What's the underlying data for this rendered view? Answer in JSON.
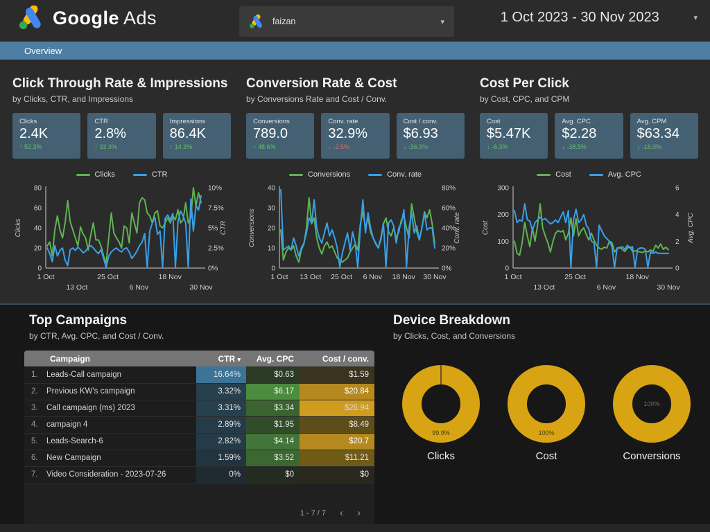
{
  "header": {
    "logo_google": "Google",
    "logo_ads": "Ads",
    "account_name": "faizan",
    "date_range": "1 Oct 2023 - 30 Nov 2023",
    "caret": "▾"
  },
  "tabbar": {
    "overview_label": "Overview"
  },
  "colors": {
    "green_delta": "#62bd6e",
    "red_delta": "#de6a64",
    "donut_gold": "#d9a413"
  },
  "sections": [
    {
      "title": "Click Through Rate & Impressions",
      "subtitle": "by Clicks, CTR, and Impressions",
      "cards": [
        {
          "label": "Clicks",
          "value": "2.4K",
          "arrow": "↑",
          "delta": "52.3%",
          "delta_color": "#62bd6e"
        },
        {
          "label": "CTR",
          "value": "2.8%",
          "arrow": "↑",
          "delta": "33.3%",
          "delta_color": "#62bd6e"
        },
        {
          "label": "Impressions",
          "value": "86.4K",
          "arrow": "↑",
          "delta": "14.3%",
          "delta_color": "#62bd6e"
        }
      ]
    },
    {
      "title": "Conversion Rate & Cost",
      "subtitle": "by Conversions Rate and Cost / Conv.",
      "cards": [
        {
          "label": "Conversions",
          "value": "789.0",
          "arrow": "↑",
          "delta": "48.6%",
          "delta_color": "#62bd6e"
        },
        {
          "label": "Conv. rate",
          "value": "32.9%",
          "arrow": "↓",
          "delta": "-2.5%",
          "delta_color": "#de6a64"
        },
        {
          "label": "Cost / conv.",
          "value": "$6.93",
          "arrow": "↓",
          "delta": "-36.9%",
          "delta_color": "#62bd6e"
        }
      ]
    },
    {
      "title": "Cost Per Click",
      "subtitle": "by Cost, CPC, and CPM",
      "cards": [
        {
          "label": "Cost",
          "value": "$5.47K",
          "arrow": "↓",
          "delta": "-6.3%",
          "delta_color": "#62bd6e"
        },
        {
          "label": "Avg. CPC",
          "value": "$2.28",
          "arrow": "↓",
          "delta": "-38.5%",
          "delta_color": "#62bd6e"
        },
        {
          "label": "Avg. CPM",
          "value": "$63.34",
          "arrow": "↓",
          "delta": "-18.0%",
          "delta_color": "#62bd6e"
        }
      ]
    }
  ],
  "chart_data": [
    {
      "type": "line",
      "x_range": [
        "1 Oct 2023",
        "30 Nov 2023"
      ],
      "x_ticks": [
        "1 Oct",
        "13 Oct",
        "25 Oct",
        "6 Nov",
        "18 Nov",
        "30 Nov"
      ],
      "x_stagger": true,
      "left_axis": {
        "label": "Clicks",
        "min": 0,
        "max": 80,
        "ticks": [
          0,
          20,
          40,
          60,
          80
        ],
        "tick_labels": [
          "0",
          "20",
          "40",
          "60",
          "80"
        ]
      },
      "right_axis": {
        "label": "CTR",
        "min": 0,
        "max": 10,
        "ticks": [
          0,
          2.5,
          5,
          7.5,
          10
        ],
        "tick_labels": [
          "0%",
          "2.5%",
          "5%",
          "7.5%",
          "10%"
        ]
      },
      "series": [
        {
          "name": "Clicks",
          "axis": "left",
          "color": "#61b253",
          "values": [
            22,
            26,
            12,
            38,
            52,
            38,
            30,
            45,
            67,
            46,
            38,
            30,
            22,
            41,
            34,
            30,
            18,
            33,
            45,
            28,
            28,
            22,
            12,
            5,
            30,
            55,
            35,
            30,
            26,
            20,
            42,
            40,
            25,
            55,
            45,
            35,
            65,
            70,
            68,
            55,
            52,
            45,
            55,
            57,
            42,
            40,
            45,
            50,
            45,
            52,
            48,
            58,
            45,
            48,
            65,
            45,
            50,
            80,
            62,
            75,
            65
          ]
        },
        {
          "name": "CTR",
          "axis": "right",
          "color": "#3aa0e8",
          "values": [
            2.5,
            1.8,
            0.8,
            2.8,
            1.5,
            2.2,
            2.5,
            1.0,
            0.3,
            2.3,
            2.5,
            2.2,
            2.6,
            2.3,
            1.9,
            2.1,
            2.6,
            2.8,
            2.5,
            2.1,
            1.8,
            2.3,
            1.2,
            0.1,
            1.5,
            2.0,
            2.3,
            2.5,
            2.2,
            2.0,
            2.4,
            2.5,
            2.0,
            1.2,
            1.6,
            2.1,
            2.8,
            3.2,
            4.3,
            0.1,
            4.6,
            5.6,
            6.3,
            4.2,
            4.6,
            0.1,
            6.2,
            6.6,
            6.0,
            6.8,
            0.1,
            5.8,
            7.1,
            6.5,
            5.6,
            0.1,
            8.6,
            4.6,
            7.8,
            7.2,
            9.0
          ]
        }
      ]
    },
    {
      "type": "line",
      "x_range": [
        "1 Oct 2023",
        "30 Nov 2023"
      ],
      "x_ticks": [
        "1 Oct",
        "13 Oct",
        "25 Oct",
        "6 Nov",
        "18 Nov",
        "30 Nov"
      ],
      "x_stagger": false,
      "left_axis": {
        "label": "Conversions",
        "min": 0,
        "max": 40,
        "ticks": [
          0,
          10,
          20,
          30,
          40
        ],
        "tick_labels": [
          "0",
          "10",
          "20",
          "30",
          "40"
        ]
      },
      "right_axis": {
        "label": "Conv. rate",
        "min": 0,
        "max": 80,
        "ticks": [
          0,
          20,
          40,
          60,
          80
        ],
        "tick_labels": [
          "0%",
          "20%",
          "40%",
          "60%",
          "80%"
        ]
      },
      "series": [
        {
          "name": "Conversions",
          "axis": "left",
          "color": "#61b253",
          "values": [
            19,
            4,
            8,
            10,
            9,
            11,
            6,
            3,
            9,
            12,
            20,
            35,
            22,
            25,
            15,
            10,
            7,
            11,
            13,
            10,
            11,
            8,
            5,
            4,
            3,
            4,
            5,
            8,
            10,
            12,
            9,
            22,
            28,
            20,
            25,
            18,
            15,
            12,
            10,
            14,
            22,
            25,
            18,
            16,
            20,
            15,
            18,
            24,
            26,
            20,
            15,
            32,
            25,
            18,
            14,
            20,
            28,
            25,
            29,
            22,
            12
          ]
        },
        {
          "name": "Conv. rate",
          "axis": "right",
          "color": "#3aa0e8",
          "values": [
            78,
            18,
            20,
            22,
            18,
            30,
            22,
            12,
            20,
            25,
            35,
            50,
            45,
            68,
            40,
            30,
            25,
            35,
            45,
            32,
            38,
            30,
            20,
            1,
            15,
            25,
            35,
            18,
            36,
            25,
            1,
            40,
            68,
            35,
            55,
            40,
            30,
            25,
            20,
            30,
            45,
            1,
            45,
            48,
            42,
            25,
            40,
            45,
            58,
            1,
            40,
            55,
            35,
            42,
            28,
            40,
            55,
            38,
            40,
            40,
            20
          ]
        }
      ]
    },
    {
      "type": "line",
      "x_range": [
        "1 Oct 2023",
        "30 Nov 2023"
      ],
      "x_ticks": [
        "1 Oct",
        "13 Oct",
        "25 Oct",
        "6 Nov",
        "18 Nov",
        "30 Nov"
      ],
      "x_stagger": true,
      "left_axis": {
        "label": "Cost",
        "min": 0,
        "max": 300,
        "ticks": [
          0,
          100,
          200,
          300
        ],
        "tick_labels": [
          "0",
          "100",
          "200",
          "300"
        ]
      },
      "right_axis": {
        "label": "Avg. CPC",
        "min": 0,
        "max": 6,
        "ticks": [
          0,
          2,
          4,
          6
        ],
        "tick_labels": [
          "0",
          "2",
          "4",
          "6"
        ]
      },
      "series": [
        {
          "name": "Cost",
          "axis": "left",
          "color": "#61b253",
          "values": [
            100,
            55,
            48,
            95,
            170,
            120,
            80,
            150,
            100,
            160,
            240,
            150,
            120,
            95,
            60,
            100,
            130,
            140,
            135,
            140,
            105,
            130,
            188,
            120,
            185,
            120,
            140,
            150,
            125,
            105,
            130,
            105,
            85,
            75,
            70,
            78,
            75,
            100,
            95,
            60,
            72,
            78,
            70,
            62,
            75,
            80,
            62,
            65,
            62,
            60,
            58,
            65,
            60,
            68,
            62,
            85,
            75,
            90,
            70,
            78,
            68
          ]
        },
        {
          "name": "Avg. CPC",
          "axis": "right",
          "color": "#3aa0e8",
          "values": [
            4.3,
            3.4,
            3.6,
            3.5,
            4.8,
            3.6,
            3.5,
            2.8,
            3.4,
            3.6,
            3.8,
            3.6,
            3.7,
            3.5,
            3.3,
            3.4,
            3.6,
            3.4,
            3.8,
            4.2,
            3.4,
            4.3,
            0.05,
            3.6,
            4.4,
            3.4,
            3.6,
            4.0,
            3.2,
            2.9,
            2.0,
            1.9,
            0.05,
            3.2,
            2.8,
            2.4,
            2.2,
            2.0,
            1.6,
            0.05,
            1.5,
            1.5,
            1.6,
            1.4,
            1.7,
            1.5,
            1.6,
            0.05,
            1.4,
            1.5,
            1.5,
            1.4,
            0.05,
            1.2,
            1.1,
            1.2,
            1.1,
            1.1,
            1.1,
            1.1,
            1.1
          ]
        }
      ]
    },
    {
      "type": "pie",
      "label": "Clicks",
      "slices": [
        99.9,
        0.1
      ],
      "percent_label": "99.9%",
      "percent_pos": "bottom",
      "color": "#d9a413"
    },
    {
      "type": "pie",
      "label": "Cost",
      "slices": [
        100
      ],
      "percent_label": "100%",
      "percent_pos": "bottom",
      "color": "#d9a413"
    },
    {
      "type": "pie",
      "label": "Conversions",
      "slices": [
        100
      ],
      "percent_label": "100%",
      "percent_pos": "center",
      "color": "#d9a413"
    }
  ],
  "top_campaigns": {
    "title": "Top Campaigns",
    "subtitle": "by CTR, Avg. CPC, and Cost / Conv.",
    "sort_icon": "▾",
    "headers": [
      "Campaign",
      "CTR",
      "Avg. CPC",
      "Cost / conv."
    ],
    "rows": [
      {
        "num": "1.",
        "name": "Leads-Call campaign",
        "ctr": "16.64%",
        "ctr_bg": "#3d7396",
        "cpc": "$0.63",
        "cpc_bg": "#2b3a25",
        "cost": "$1.59",
        "cost_bg": "#393320",
        "cost_fg": "#e8e8e8"
      },
      {
        "num": "2.",
        "name": "Previous KW's campaign",
        "ctr": "3.32%",
        "ctr_bg": "#27404d",
        "cpc": "$6.17",
        "cpc_bg": "#4c8c3f",
        "cost": "$20.84",
        "cost_bg": "#b5891f",
        "cost_fg": "#ffffff"
      },
      {
        "num": "3.",
        "name": "Call campaign (ms) 2023",
        "ctr": "3.31%",
        "ctr_bg": "#27404d",
        "cpc": "$3.34",
        "cpc_bg": "#3a6330",
        "cost": "$26.94",
        "cost_bg": "#cf9c20",
        "cost_fg": "#d8d8d8"
      },
      {
        "num": "4.",
        "name": "campaign 4",
        "ctr": "2.89%",
        "ctr_bg": "#253c48",
        "cpc": "$1.95",
        "cpc_bg": "#314c29",
        "cost": "$8.49",
        "cost_bg": "#5e4d18",
        "cost_fg": "#e8e8e8"
      },
      {
        "num": "5.",
        "name": "Leads-Search-6",
        "ctr": "2.82%",
        "ctr_bg": "#253c48",
        "cpc": "$4.14",
        "cpc_bg": "#427539",
        "cost": "$20.7",
        "cost_bg": "#b5891f",
        "cost_fg": "#ffffff"
      },
      {
        "num": "6.",
        "name": "New Campaign",
        "ctr": "1.59%",
        "ctr_bg": "#223440",
        "cpc": "$3.52",
        "cpc_bg": "#3c6731",
        "cost": "$11.21",
        "cost_bg": "#6f5a16",
        "cost_fg": "#e8e8e8"
      },
      {
        "num": "7.",
        "name": "Video Consideration - 2023-07-26",
        "ctr": "0%",
        "ctr_bg": "#202a31",
        "cpc": "$0",
        "cpc_bg": "#242b21",
        "cost": "$0",
        "cost_bg": "#2a271d",
        "cost_fg": "#e8e8e8"
      }
    ],
    "pagination": {
      "text": "1 - 7 / 7",
      "prev": "‹",
      "next": "›"
    }
  },
  "device_breakdown": {
    "title": "Device Breakdown",
    "subtitle": "by Clicks, Cost, and Conversions"
  }
}
